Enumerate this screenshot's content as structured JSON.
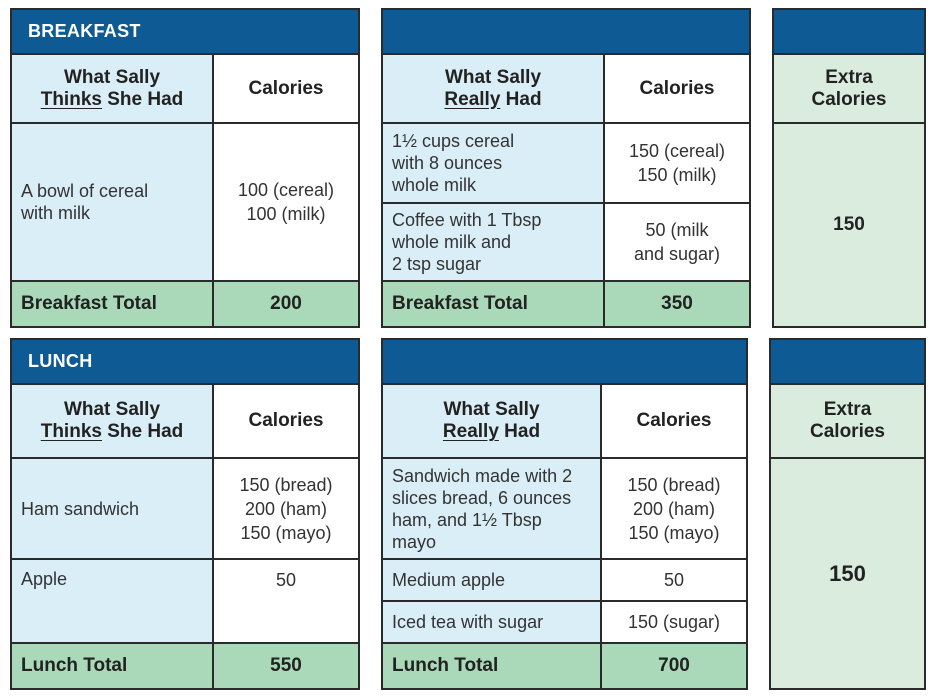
{
  "breakfast": {
    "header": "BREAKFAST",
    "thinks": {
      "col1_line1": "What Sally",
      "col1_line2_a": "Thinks",
      "col1_line2_b": " She Had",
      "col2": "Calories",
      "rows": [
        {
          "item": [
            "A bowl of cereal",
            "with milk"
          ],
          "cal": [
            "100 (cereal)",
            "100 (milk)"
          ]
        }
      ],
      "total_label": "Breakfast Total",
      "total_value": "200"
    },
    "really": {
      "col1_line1": "What Sally",
      "col1_line2_a": "Really",
      "col1_line2_b": " Had",
      "col2": "Calories",
      "rows": [
        {
          "item": [
            "1½ cups cereal",
            "with 8 ounces",
            "whole milk"
          ],
          "cal": [
            "150 (cereal)",
            "150 (milk)"
          ]
        },
        {
          "item": [
            "Coffee with 1 Tbsp",
            "whole milk and",
            "2 tsp sugar"
          ],
          "cal": [
            "50 (milk",
            "and sugar)"
          ]
        }
      ],
      "total_label": "Breakfast Total",
      "total_value": "350"
    },
    "extra": {
      "line1": "Extra",
      "line2": "Calories",
      "value": "150"
    }
  },
  "lunch": {
    "header": "LUNCH",
    "thinks": {
      "col1_line1": "What Sally",
      "col1_line2_a": "Thinks",
      "col1_line2_b": " She Had",
      "col2": "Calories",
      "rows": [
        {
          "item": [
            "Ham sandwich"
          ],
          "cal": [
            "150 (bread)",
            "200 (ham)",
            "150 (mayo)"
          ]
        },
        {
          "item": [
            "Apple"
          ],
          "cal": [
            "50"
          ]
        }
      ],
      "total_label": "Lunch Total",
      "total_value": "550"
    },
    "really": {
      "col1_line1": "What Sally",
      "col1_line2_a": "Really",
      "col1_line2_b": " Had",
      "col2": "Calories",
      "rows": [
        {
          "item": [
            "Sandwich made with 2",
            "slices bread, 6 ounces",
            "ham, and 1½ Tbsp",
            "mayo"
          ],
          "cal": [
            "150 (bread)",
            "200 (ham)",
            "150 (mayo)"
          ]
        },
        {
          "item": [
            "Medium apple"
          ],
          "cal": [
            "50"
          ]
        },
        {
          "item": [
            "Iced tea with sugar"
          ],
          "cal": [
            "150 (sugar)"
          ]
        }
      ],
      "total_label": "Lunch Total",
      "total_value": "700"
    },
    "extra": {
      "line1": "Extra",
      "line2": "Calories",
      "value": "150"
    }
  }
}
